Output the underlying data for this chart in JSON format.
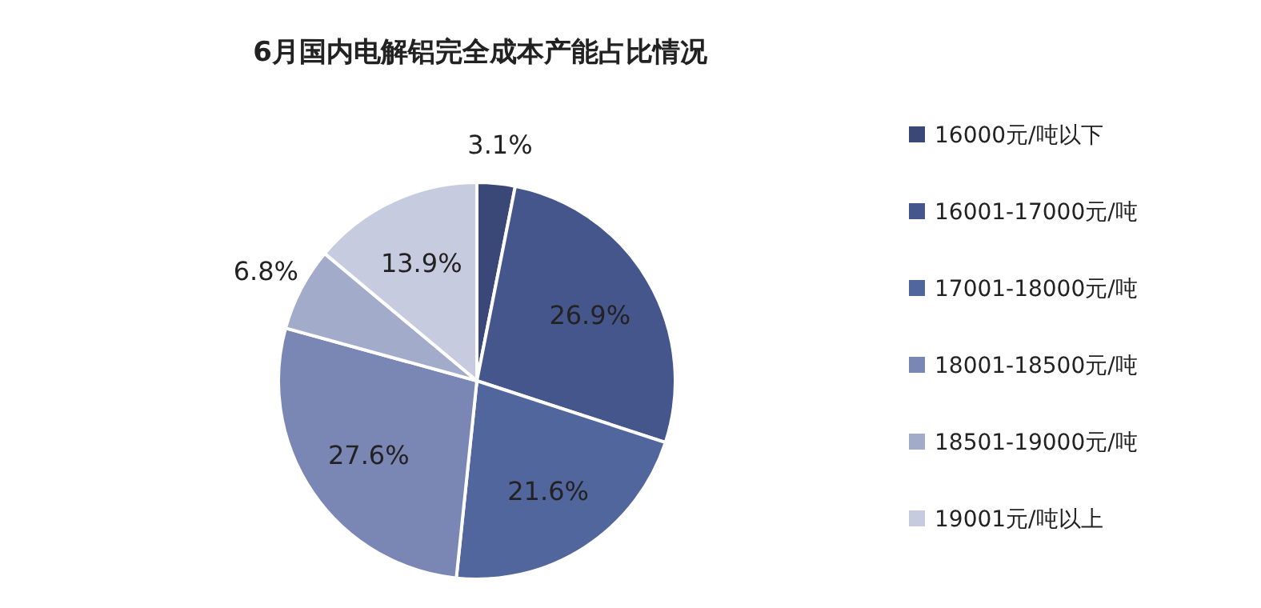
{
  "chart_data": {
    "type": "pie",
    "title": "6月国内电解铝完全成本产能占比情况",
    "categories": [
      "16000元/吨以下",
      "16001-17000元/吨",
      "17001-18000元/吨",
      "18001-18500元/吨",
      "18501-19000元/吨",
      "19001元/吨以上"
    ],
    "values": [
      3.1,
      26.9,
      21.6,
      27.6,
      6.8,
      13.9
    ],
    "value_labels": [
      "3.1%",
      "26.9%",
      "21.6%",
      "27.6%",
      "6.8%",
      "13.9%"
    ],
    "colors": [
      "#3a4878",
      "#45568c",
      "#52669e",
      "#7a87b5",
      "#a3abca",
      "#c6cbdf"
    ],
    "legend": "right"
  }
}
